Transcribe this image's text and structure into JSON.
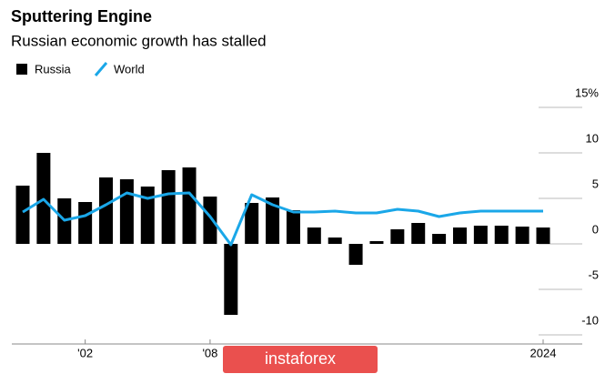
{
  "chart_data": {
    "type": "bar_line",
    "title": "Sputtering Engine",
    "subtitle": "Russian economic growth has stalled",
    "categories": [
      null,
      null,
      null,
      "'02",
      null,
      null,
      null,
      null,
      null,
      "'08",
      null,
      null,
      null,
      null,
      null,
      null,
      null,
      null,
      null,
      null,
      null,
      null,
      null,
      null,
      null,
      "2024"
    ],
    "series": [
      {
        "name": "Russia",
        "type": "bar",
        "color": "#000000",
        "values": [
          6.4,
          10.0,
          5.0,
          4.6,
          7.3,
          7.1,
          6.3,
          8.1,
          8.4,
          5.2,
          -7.8,
          4.5,
          5.1,
          3.7,
          1.8,
          0.7,
          -2.3,
          0.3,
          1.6,
          2.3,
          1.1,
          1.8,
          2.0,
          2.0,
          1.9,
          1.8
        ]
      },
      {
        "name": "World",
        "type": "line",
        "color": "#1aa7e8",
        "values": [
          3.5,
          4.9,
          2.6,
          3.1,
          4.3,
          5.6,
          5.0,
          5.5,
          5.6,
          3.0,
          -0.1,
          5.4,
          4.3,
          3.5,
          3.5,
          3.6,
          3.4,
          3.4,
          3.8,
          3.6,
          3.0,
          3.4,
          3.6,
          3.6,
          3.6,
          3.6
        ]
      }
    ],
    "ylim": [
      -11,
      16
    ],
    "yticks": [
      {
        "value": 15,
        "label": "15%"
      },
      10,
      5,
      0,
      -5,
      -10
    ],
    "grid": true,
    "legend": "top-left",
    "watermark": "instaforex"
  }
}
